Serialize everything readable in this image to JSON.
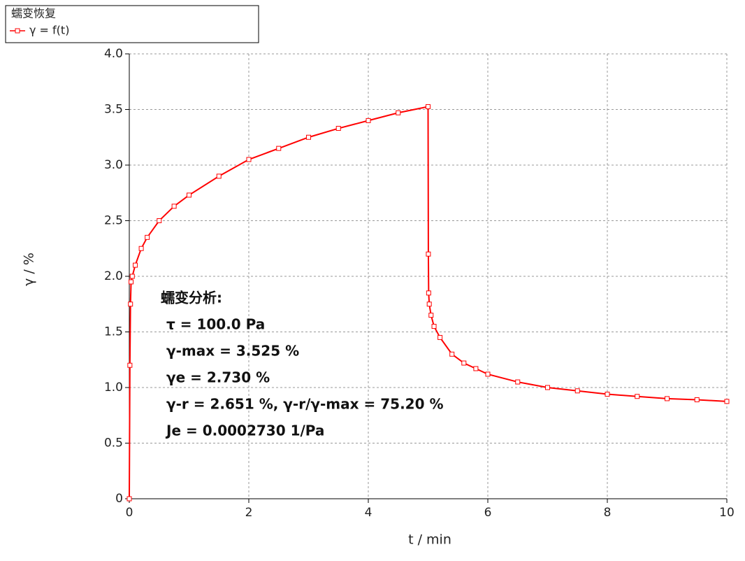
{
  "chart_data": {
    "type": "line",
    "legend": {
      "title": "蠕变恢复",
      "position": "upper left"
    },
    "xlabel": "t / min",
    "ylabel": "γ / %",
    "x": [
      0,
      0.01,
      0.02,
      0.03,
      0.05,
      0.1,
      0.2,
      0.3,
      0.5,
      0.75,
      1,
      1.5,
      2,
      2.5,
      3,
      3.5,
      4,
      4.5,
      5,
      5.005,
      5.01,
      5.02,
      5.05,
      5.1,
      5.2,
      5.4,
      5.6,
      5.8,
      6,
      6.5,
      7,
      7.5,
      8,
      8.5,
      9,
      9.5,
      10
    ],
    "series": [
      {
        "name": "γ = f(t)",
        "color": "#ff0000",
        "values": [
          0,
          1.2,
          1.75,
          1.95,
          2.0,
          2.1,
          2.25,
          2.35,
          2.5,
          2.63,
          2.73,
          2.9,
          3.05,
          3.15,
          3.25,
          3.33,
          3.4,
          3.47,
          3.525,
          2.2,
          1.85,
          1.75,
          1.65,
          1.55,
          1.45,
          1.3,
          1.22,
          1.17,
          1.12,
          1.05,
          1.0,
          0.97,
          0.94,
          0.92,
          0.9,
          0.89,
          0.875
        ]
      }
    ],
    "xlim": [
      0,
      10
    ],
    "xticks": [
      0,
      2,
      4,
      6,
      8,
      10
    ],
    "ylim": [
      0,
      4
    ],
    "yticks": [
      0,
      0.5,
      {
        "value": 1,
        "label": "1.0"
      },
      1.5,
      {
        "value": 2,
        "label": "2.0"
      },
      2.5,
      {
        "value": 3,
        "label": "3.0"
      },
      3.5,
      {
        "value": 4,
        "label": "4.0"
      }
    ],
    "grid": true,
    "annotations": [
      "蠕变分析:",
      "τ   = 100.0 Pa",
      "γ-max = 3.525 %",
      "γe = 2.730 %",
      "γ-r = 2.651 %,   γ-r/γ-max = 75.20 %",
      "Je = 0.0002730 1/Pa"
    ]
  }
}
